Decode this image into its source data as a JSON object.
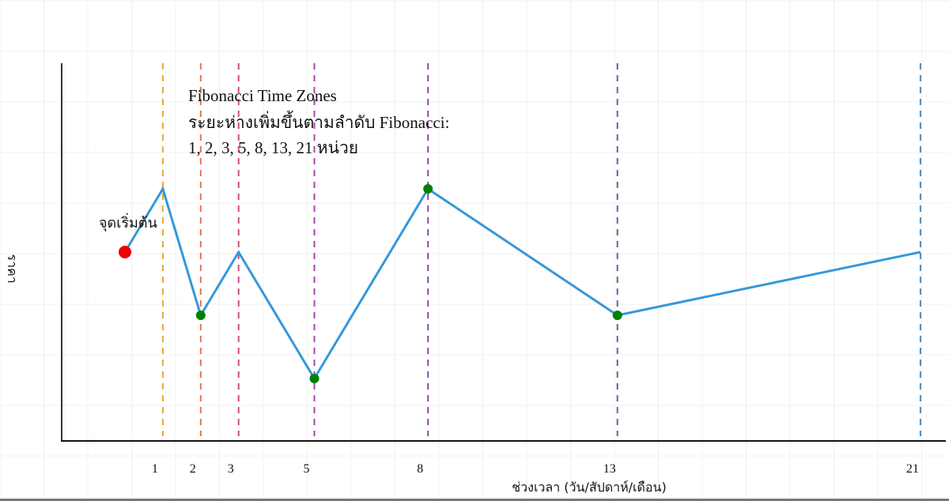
{
  "chart_data": {
    "type": "line",
    "title": "",
    "xlabel": "ช่วงเวลา (วัน/สัปดาห์/เดือน)",
    "ylabel": "ราคา",
    "x_ticks": [
      "1",
      "2",
      "3",
      "5",
      "8",
      "13",
      "21"
    ],
    "xlim": [
      -3.3,
      21.8
    ],
    "ylim": [
      85,
      112
    ],
    "grid": true,
    "series": [
      {
        "color": "#3498db",
        "points": [
          {
            "x": 0,
            "y": 100
          },
          {
            "x": 1,
            "y": 105
          },
          {
            "x": 2,
            "y": 95
          },
          {
            "x": 3,
            "y": 100
          },
          {
            "x": 5,
            "y": 90
          },
          {
            "x": 8,
            "y": 105
          },
          {
            "x": 13,
            "y": 95
          },
          {
            "x": 21,
            "y": 100
          }
        ]
      }
    ],
    "start_marker": {
      "x": 0,
      "y": 100,
      "color": "#ee0000",
      "label": "จุดเริ่มต้น"
    },
    "highlight_markers": {
      "color": "#008000",
      "x": [
        2,
        5,
        8,
        13
      ]
    },
    "zone_lines": [
      {
        "x": 1,
        "color": "#e8a838"
      },
      {
        "x": 2,
        "color": "#e0774a"
      },
      {
        "x": 3,
        "color": "#d24a80"
      },
      {
        "x": 5,
        "color": "#a447a8"
      },
      {
        "x": 8,
        "color": "#8a4aa8"
      },
      {
        "x": 13,
        "color": "#5a669e"
      },
      {
        "x": 21,
        "color": "#4a8cc0"
      }
    ],
    "annotation": {
      "line1": "Fibonacci Time Zones",
      "line2": "ระยะห่างเพิ่มขึ้นตามลำดับ Fibonacci:",
      "line3": "1, 2, 3, 5, 8, 13, 21 หน่วย"
    }
  }
}
